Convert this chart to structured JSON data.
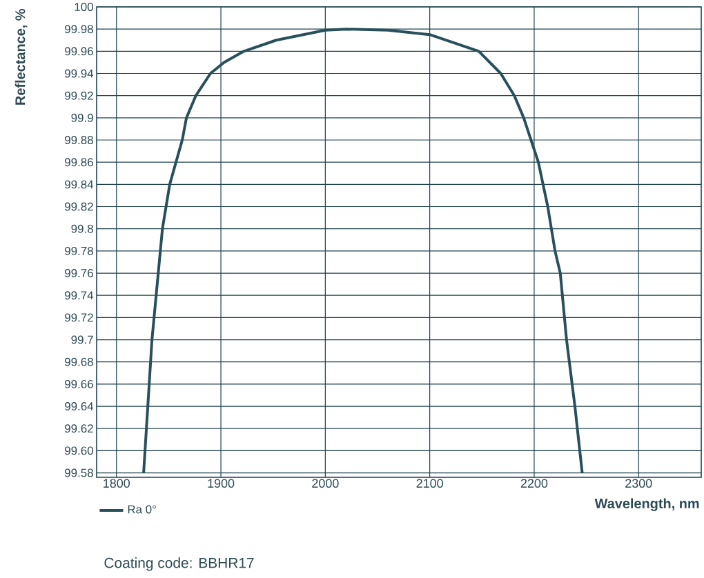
{
  "chart_data": {
    "type": "line",
    "xlabel": "Wavelength, nm",
    "ylabel": "Reflectance, %",
    "annotations": [
      "Coating code: BBHR17"
    ],
    "xlim": [
      1781,
      2360
    ],
    "ylim": [
      99.576,
      100
    ],
    "xticks": [
      1800,
      1900,
      2000,
      2100,
      2200,
      2300
    ],
    "yticks": [
      99.58,
      {
        "value": 99.6,
        "label": "99.60"
      },
      99.62,
      99.64,
      99.66,
      99.68,
      99.7,
      99.72,
      99.74,
      99.76,
      99.78,
      99.8,
      99.82,
      99.84,
      99.86,
      99.88,
      99.9,
      99.92,
      99.94,
      99.96,
      99.98,
      100
    ],
    "grid": true,
    "legend": "bottom left",
    "line_style": "solid",
    "marker": "none",
    "series": [
      {
        "name": "Ra 0°",
        "color": "#27505c",
        "x": [
          1826,
          1834,
          1840,
          1844,
          1851,
          1863,
          1867,
          1876,
          1890,
          1903,
          1922,
          1953,
          2000,
          2020,
          2060,
          2100,
          2147,
          2168,
          2181,
          2190,
          2197,
          2204,
          2213,
          2220,
          2225,
          2231,
          2239,
          2246
        ],
        "values": [
          99.58,
          99.7,
          99.76,
          99.8,
          99.84,
          99.88,
          99.9,
          99.92,
          99.94,
          99.95,
          99.96,
          99.97,
          99.979,
          99.98,
          99.979,
          99.975,
          99.96,
          99.94,
          99.92,
          99.9,
          99.88,
          99.86,
          99.82,
          99.78,
          99.76,
          99.7,
          99.64,
          99.58
        ]
      }
    ]
  }
}
